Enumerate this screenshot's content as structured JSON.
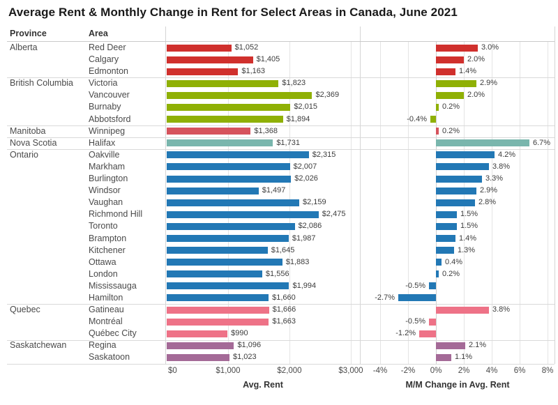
{
  "title": "Average Rent & Monthly Change in Rent for Select Areas in Canada, June 2021",
  "columns": {
    "province": "Province",
    "area": "Area"
  },
  "axes": {
    "rent": {
      "title": "Avg. Rent",
      "ticks": [
        "$0",
        "$1,000",
        "$2,000",
        "$3,000"
      ],
      "tick_values": [
        0,
        1000,
        2000,
        3000
      ],
      "range": [
        0,
        3150
      ]
    },
    "change": {
      "title": "M/M Change in Avg. Rent",
      "ticks": [
        "-4%",
        "-2%",
        "0%",
        "2%",
        "4%",
        "6%",
        "8%"
      ],
      "tick_values": [
        -4,
        -2,
        0,
        2,
        4,
        6,
        8
      ],
      "range": [
        -5.4,
        8.5
      ]
    }
  },
  "chart_data": {
    "type": "bar",
    "orientation": "horizontal",
    "panels": [
      "Avg. Rent",
      "M/M Change in Avg. Rent"
    ],
    "grid": true,
    "groups": [
      {
        "province": "Alberta",
        "color": "#d0302d",
        "rows": [
          {
            "area": "Red Deer",
            "rent": 1052,
            "rent_label": "$1,052",
            "change": 3.0,
            "change_label": "3.0%"
          },
          {
            "area": "Calgary",
            "rent": 1405,
            "rent_label": "$1,405",
            "change": 2.0,
            "change_label": "2.0%"
          },
          {
            "area": "Edmonton",
            "rent": 1163,
            "rent_label": "$1,163",
            "change": 1.4,
            "change_label": "1.4%"
          }
        ]
      },
      {
        "province": "British Columbia",
        "color": "#8fb005",
        "rows": [
          {
            "area": "Victoria",
            "rent": 1823,
            "rent_label": "$1,823",
            "change": 2.9,
            "change_label": "2.9%"
          },
          {
            "area": "Vancouver",
            "rent": 2369,
            "rent_label": "$2,369",
            "change": 2.0,
            "change_label": "2.0%"
          },
          {
            "area": "Burnaby",
            "rent": 2015,
            "rent_label": "$2,015",
            "change": 0.2,
            "change_label": "0.2%"
          },
          {
            "area": "Abbotsford",
            "rent": 1894,
            "rent_label": "$1,894",
            "change": -0.4,
            "change_label": "-0.4%"
          }
        ]
      },
      {
        "province": "Manitoba",
        "color": "#d6535c",
        "rows": [
          {
            "area": "Winnipeg",
            "rent": 1368,
            "rent_label": "$1,368",
            "change": 0.2,
            "change_label": "0.2%"
          }
        ]
      },
      {
        "province": "Nova Scotia",
        "color": "#79b6ad",
        "rows": [
          {
            "area": "Halifax",
            "rent": 1731,
            "rent_label": "$1,731",
            "change": 6.7,
            "change_label": "6.7%"
          }
        ]
      },
      {
        "province": "Ontario",
        "color": "#2278b5",
        "rows": [
          {
            "area": "Oakville",
            "rent": 2315,
            "rent_label": "$2,315",
            "change": 4.2,
            "change_label": "4.2%"
          },
          {
            "area": "Markham",
            "rent": 2007,
            "rent_label": "$2,007",
            "change": 3.8,
            "change_label": "3.8%"
          },
          {
            "area": "Burlington",
            "rent": 2026,
            "rent_label": "$2,026",
            "change": 3.3,
            "change_label": "3.3%"
          },
          {
            "area": "Windsor",
            "rent": 1497,
            "rent_label": "$1,497",
            "change": 2.9,
            "change_label": "2.9%"
          },
          {
            "area": "Vaughan",
            "rent": 2159,
            "rent_label": "$2,159",
            "change": 2.8,
            "change_label": "2.8%"
          },
          {
            "area": "Richmond Hill",
            "rent": 2475,
            "rent_label": "$2,475",
            "change": 1.5,
            "change_label": "1.5%"
          },
          {
            "area": "Toronto",
            "rent": 2086,
            "rent_label": "$2,086",
            "change": 1.5,
            "change_label": "1.5%"
          },
          {
            "area": "Brampton",
            "rent": 1987,
            "rent_label": "$1,987",
            "change": 1.4,
            "change_label": "1.4%"
          },
          {
            "area": "Kitchener",
            "rent": 1645,
            "rent_label": "$1,645",
            "change": 1.3,
            "change_label": "1.3%"
          },
          {
            "area": "Ottawa",
            "rent": 1883,
            "rent_label": "$1,883",
            "change": 0.4,
            "change_label": "0.4%"
          },
          {
            "area": "London",
            "rent": 1556,
            "rent_label": "$1,556",
            "change": 0.2,
            "change_label": "0.2%"
          },
          {
            "area": "Mississauga",
            "rent": 1994,
            "rent_label": "$1,994",
            "change": -0.5,
            "change_label": "-0.5%"
          },
          {
            "area": "Hamilton",
            "rent": 1660,
            "rent_label": "$1,660",
            "change": -2.7,
            "change_label": "-2.7%"
          }
        ]
      },
      {
        "province": "Quebec",
        "color": "#ee7287",
        "rows": [
          {
            "area": "Gatineau",
            "rent": 1666,
            "rent_label": "$1,666",
            "change": 3.8,
            "change_label": "3.8%"
          },
          {
            "area": "Montréal",
            "rent": 1663,
            "rent_label": "$1,663",
            "change": -0.5,
            "change_label": "-0.5%"
          },
          {
            "area": "Québec City",
            "rent": 990,
            "rent_label": "$990",
            "change": -1.2,
            "change_label": "-1.2%"
          }
        ]
      },
      {
        "province": "Saskatchewan",
        "color": "#a46a97",
        "rows": [
          {
            "area": "Regina",
            "rent": 1096,
            "rent_label": "$1,096",
            "change": 2.1,
            "change_label": "2.1%"
          },
          {
            "area": "Saskatoon",
            "rent": 1023,
            "rent_label": "$1,023",
            "change": 1.1,
            "change_label": "1.1%"
          }
        ]
      }
    ]
  }
}
